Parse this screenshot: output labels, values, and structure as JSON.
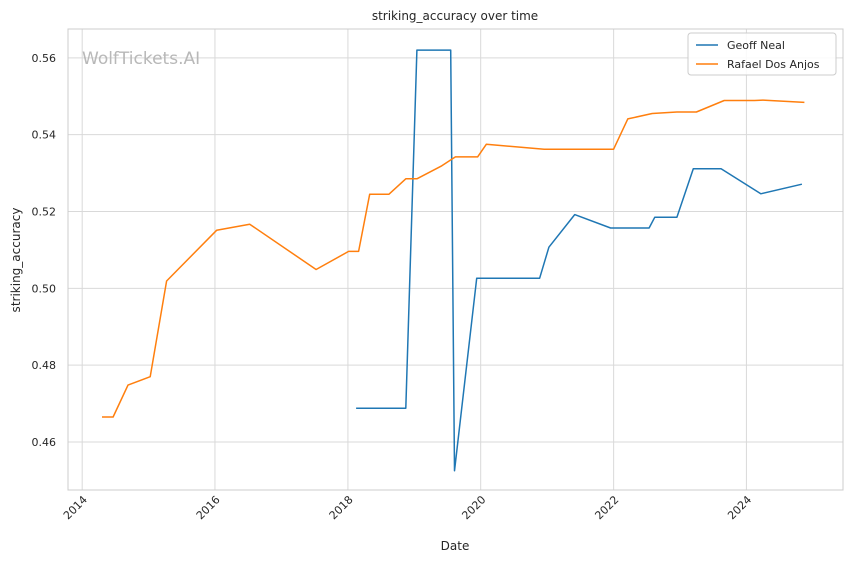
{
  "chart_data": {
    "type": "line",
    "title": "striking_accuracy over time",
    "xlabel": "Date",
    "ylabel": "striking_accuracy",
    "watermark": "WolfTickets.AI",
    "xlim": [
      "2013-10-15",
      "2025-06-15"
    ],
    "ylim": [
      0.4475,
      0.5675
    ],
    "x_ticks": [
      "2014-01-01",
      "2016-01-01",
      "2018-01-01",
      "2020-01-01",
      "2022-01-01",
      "2024-01-01"
    ],
    "x_tick_labels": [
      "2014",
      "2016",
      "2018",
      "2020",
      "2022",
      "2024"
    ],
    "y_ticks": [
      0.46,
      0.48,
      0.5,
      0.52,
      0.54,
      0.56
    ],
    "y_tick_labels": [
      "0.46",
      "0.48",
      "0.50",
      "0.52",
      "0.54",
      "0.56"
    ],
    "grid": true,
    "legend_position": "top-right",
    "series": [
      {
        "name": "Geoff Neal",
        "color": "#1f77b4",
        "points": [
          [
            "2018-02-15",
            0.4688
          ],
          [
            "2018-11-15",
            0.4688
          ],
          [
            "2019-01-15",
            0.562
          ],
          [
            "2019-07-20",
            0.562
          ],
          [
            "2019-08-10",
            0.4525
          ],
          [
            "2019-12-10",
            0.5026
          ],
          [
            "2020-11-20",
            0.5026
          ],
          [
            "2021-01-10",
            0.5107
          ],
          [
            "2021-06-01",
            0.5192
          ],
          [
            "2021-12-15",
            0.5157
          ],
          [
            "2022-07-15",
            0.5157
          ],
          [
            "2022-08-15",
            0.5185
          ],
          [
            "2022-12-15",
            0.5185
          ],
          [
            "2023-03-15",
            0.5311
          ],
          [
            "2023-08-15",
            0.5311
          ],
          [
            "2024-03-20",
            0.5246
          ],
          [
            "2024-11-01",
            0.5271
          ]
        ]
      },
      {
        "name": "Rafael Dos Anjos",
        "color": "#ff7f0e",
        "points": [
          [
            "2014-04-20",
            0.4665
          ],
          [
            "2014-06-20",
            0.4665
          ],
          [
            "2014-09-10",
            0.4748
          ],
          [
            "2015-01-10",
            0.477
          ],
          [
            "2015-04-10",
            0.5019
          ],
          [
            "2016-01-10",
            0.5151
          ],
          [
            "2016-07-10",
            0.5167
          ],
          [
            "2017-07-10",
            0.5049
          ],
          [
            "2018-01-05",
            0.5096
          ],
          [
            "2018-03-01",
            0.5096
          ],
          [
            "2018-05-01",
            0.5245
          ],
          [
            "2018-08-15",
            0.5245
          ],
          [
            "2018-11-15",
            0.5285
          ],
          [
            "2019-01-15",
            0.5285
          ],
          [
            "2019-06-01",
            0.5319
          ],
          [
            "2019-08-15",
            0.5342
          ],
          [
            "2019-12-15",
            0.5342
          ],
          [
            "2020-02-01",
            0.5375
          ],
          [
            "2020-12-15",
            0.5362
          ],
          [
            "2022-01-01",
            0.5362
          ],
          [
            "2022-03-20",
            0.5441
          ],
          [
            "2022-08-01",
            0.5455
          ],
          [
            "2022-12-15",
            0.5459
          ],
          [
            "2023-04-01",
            0.5459
          ],
          [
            "2023-09-01",
            0.5489
          ],
          [
            "2024-02-15",
            0.5489
          ],
          [
            "2024-04-01",
            0.549
          ],
          [
            "2024-11-15",
            0.5484
          ]
        ]
      }
    ]
  }
}
